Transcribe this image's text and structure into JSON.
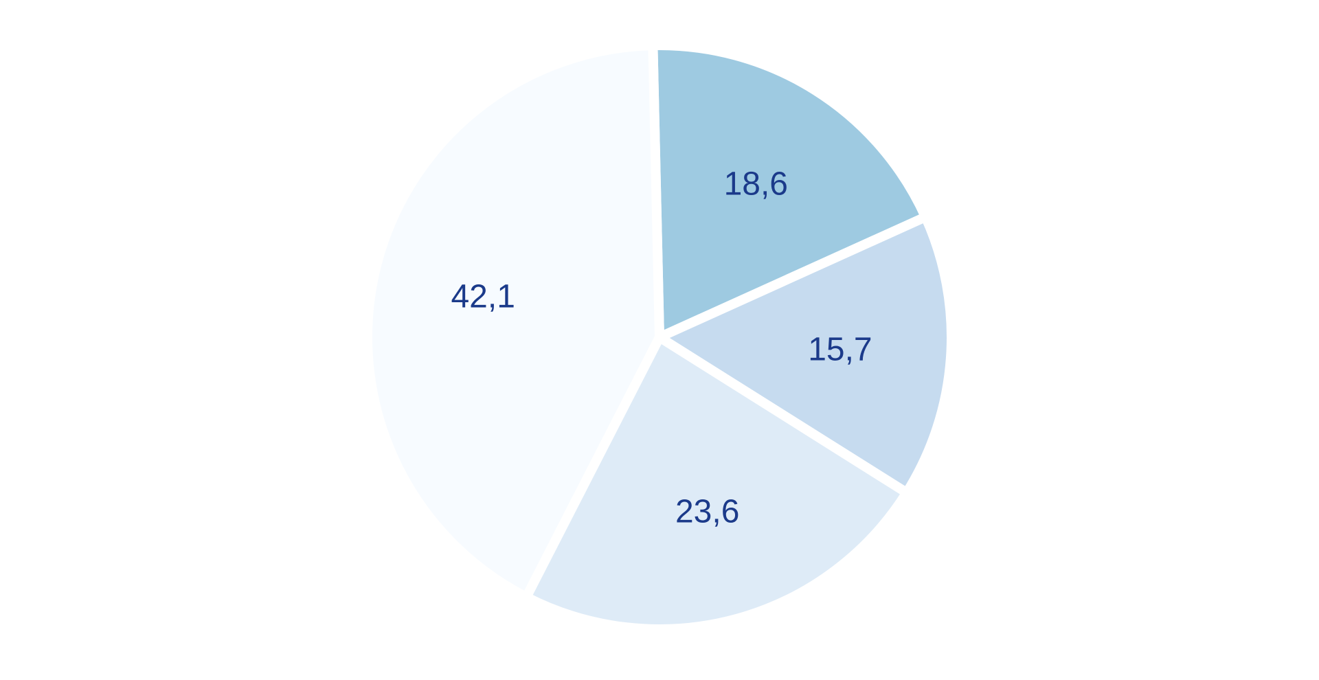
{
  "chart_data": {
    "type": "pie",
    "title": "",
    "legend": "none",
    "slices": [
      {
        "value": 18.6,
        "label": "18,6",
        "color": "#9ecae1"
      },
      {
        "value": 15.7,
        "label": "15,7",
        "color": "#c6dbef"
      },
      {
        "value": 23.6,
        "label": "23,6",
        "color": "#deebf7"
      },
      {
        "value": 42.1,
        "label": "42,1",
        "color": "#f7fbff"
      }
    ],
    "start_angle_deg": -1.3,
    "direction": "clockwise",
    "label_color": "#1b3a8a"
  }
}
